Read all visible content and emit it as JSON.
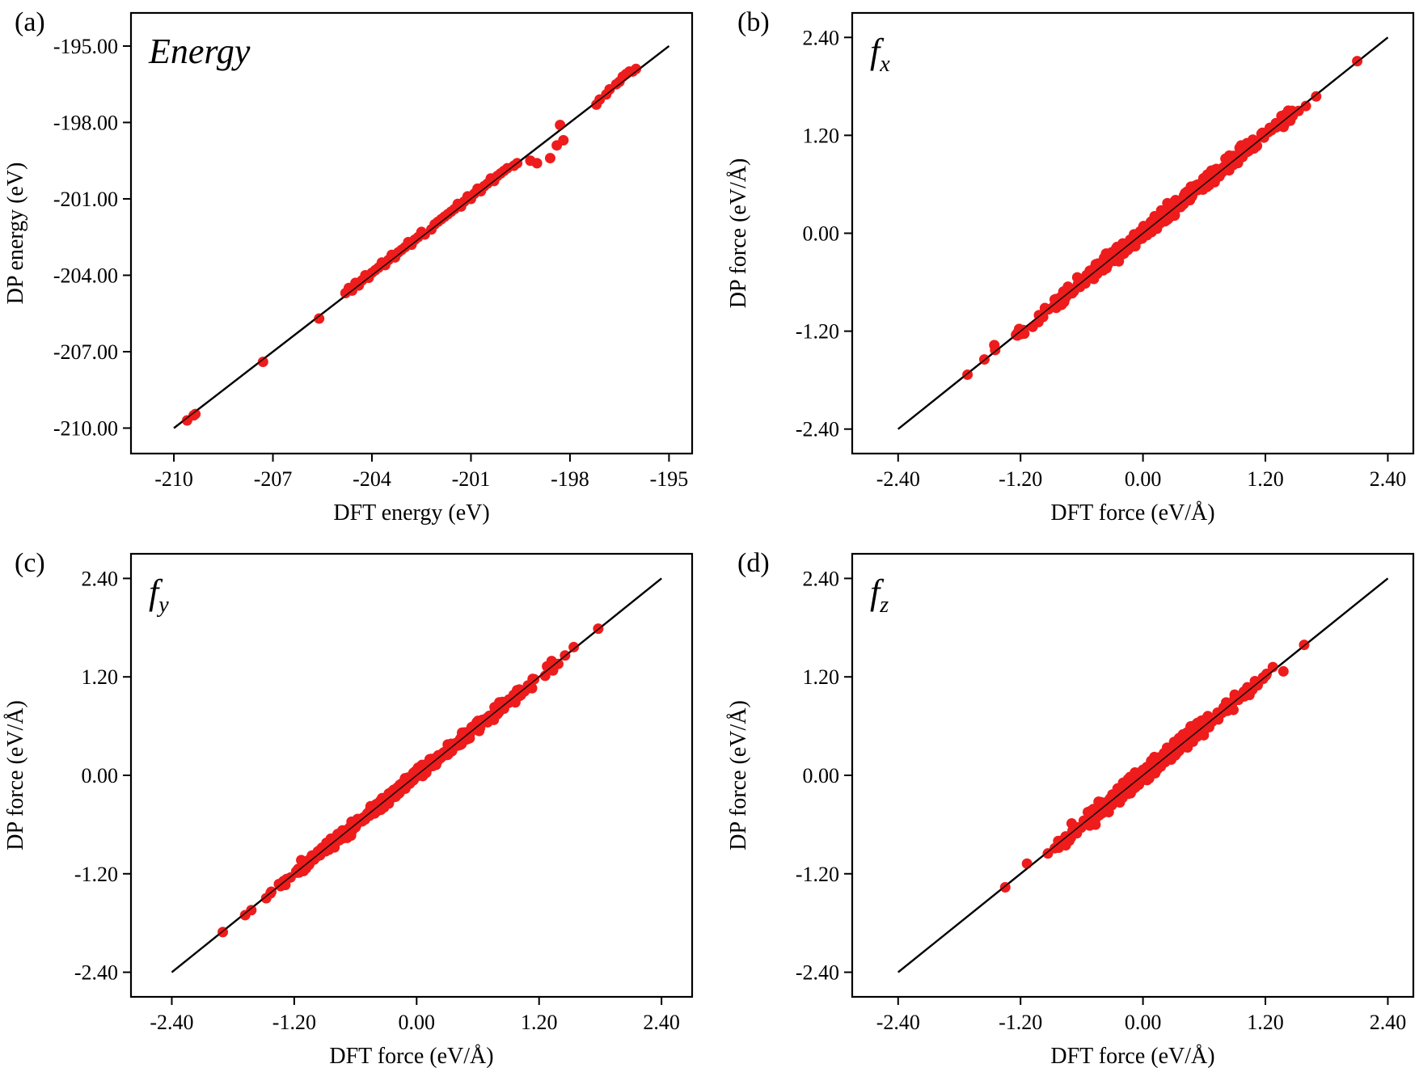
{
  "chart_data": [
    {
      "type": "scatter",
      "panel_label": "(a)",
      "title": "Energy",
      "title_sub": "",
      "xlabel": "DFT energy (eV)",
      "ylabel": "DP energy (eV)",
      "xlim": [
        -211.3,
        -194.3
      ],
      "ylim": [
        -211.0,
        -193.7
      ],
      "xticks": [
        -210,
        -207,
        -204,
        -201,
        -198,
        -195
      ],
      "xtick_labels": [
        "-210",
        "-207",
        "-204",
        "-201",
        "-198",
        "-195"
      ],
      "yticks": [
        -210,
        -207,
        -204,
        -201,
        -198,
        -195
      ],
      "ytick_labels": [
        "-210.00",
        "-207.00",
        "-204.00",
        "-201.00",
        "-198.00",
        "-195.00"
      ],
      "reference_line": {
        "from": [
          -210.0,
          -210.0
        ],
        "to": [
          -195.0,
          -195.0
        ]
      },
      "marker_color": "#ee1c1c",
      "line_color": "#000000",
      "points": [
        [
          -209.6,
          -209.7
        ],
        [
          -209.4,
          -209.5
        ],
        [
          -209.35,
          -209.45
        ],
        [
          -207.3,
          -207.4
        ],
        [
          -205.6,
          -205.7
        ],
        [
          -204.8,
          -204.7
        ],
        [
          -204.7,
          -204.5
        ],
        [
          -204.6,
          -204.6
        ],
        [
          -204.5,
          -204.3
        ],
        [
          -204.4,
          -204.4
        ],
        [
          -204.3,
          -204.2
        ],
        [
          -204.2,
          -204.0
        ],
        [
          -204.1,
          -204.1
        ],
        [
          -204.0,
          -203.9
        ],
        [
          -203.9,
          -203.8
        ],
        [
          -203.8,
          -203.7
        ],
        [
          -203.7,
          -203.5
        ],
        [
          -203.6,
          -203.6
        ],
        [
          -203.5,
          -203.4
        ],
        [
          -203.4,
          -203.2
        ],
        [
          -203.3,
          -203.3
        ],
        [
          -203.2,
          -203.1
        ],
        [
          -203.1,
          -203.0
        ],
        [
          -203.0,
          -202.9
        ],
        [
          -202.9,
          -202.7
        ],
        [
          -202.8,
          -202.8
        ],
        [
          -202.7,
          -202.6
        ],
        [
          -202.6,
          -202.5
        ],
        [
          -202.5,
          -202.3
        ],
        [
          -202.4,
          -202.4
        ],
        [
          -202.2,
          -202.2
        ],
        [
          -202.1,
          -202.0
        ],
        [
          -202.0,
          -201.9
        ],
        [
          -201.9,
          -201.8
        ],
        [
          -201.8,
          -201.7
        ],
        [
          -201.7,
          -201.6
        ],
        [
          -201.6,
          -201.5
        ],
        [
          -201.5,
          -201.4
        ],
        [
          -201.4,
          -201.2
        ],
        [
          -201.3,
          -201.3
        ],
        [
          -201.2,
          -201.1
        ],
        [
          -201.1,
          -200.9
        ],
        [
          -201.0,
          -201.0
        ],
        [
          -200.9,
          -200.8
        ],
        [
          -200.8,
          -200.6
        ],
        [
          -200.7,
          -200.7
        ],
        [
          -200.6,
          -200.5
        ],
        [
          -200.5,
          -200.4
        ],
        [
          -200.4,
          -200.2
        ],
        [
          -200.3,
          -200.3
        ],
        [
          -200.2,
          -200.1
        ],
        [
          -200.1,
          -200.0
        ],
        [
          -200.0,
          -199.9
        ],
        [
          -199.9,
          -199.8
        ],
        [
          -199.7,
          -199.7
        ],
        [
          -199.6,
          -199.6
        ],
        [
          -199.2,
          -199.5
        ],
        [
          -199.0,
          -199.6
        ],
        [
          -198.6,
          -199.4
        ],
        [
          -198.4,
          -198.9
        ],
        [
          -198.2,
          -198.7
        ],
        [
          -198.3,
          -198.1
        ],
        [
          -197.2,
          -197.3
        ],
        [
          -197.1,
          -197.1
        ],
        [
          -196.9,
          -196.9
        ],
        [
          -196.8,
          -196.7
        ],
        [
          -196.6,
          -196.5
        ],
        [
          -196.5,
          -196.4
        ],
        [
          -196.4,
          -196.2
        ],
        [
          -196.3,
          -196.1
        ],
        [
          -196.2,
          -196.0
        ],
        [
          -196.1,
          -196.0
        ],
        [
          -196.0,
          -195.9
        ]
      ]
    },
    {
      "type": "scatter",
      "panel_label": "(b)",
      "title": "f",
      "title_sub": "x",
      "xlabel": "DFT force (eV/Å)",
      "ylabel": "DP force (eV/Å)",
      "xlim": [
        -2.85,
        2.65
      ],
      "ylim": [
        -2.7,
        2.7
      ],
      "xticks": [
        -2.4,
        -1.2,
        0.0,
        1.2,
        2.4
      ],
      "xtick_labels": [
        "-2.40",
        "-1.20",
        "0.00",
        "1.20",
        "2.40"
      ],
      "yticks": [
        -2.4,
        -1.2,
        0.0,
        1.2,
        2.4
      ],
      "ytick_labels": [
        "-2.40",
        "-1.20",
        "0.00",
        "1.20",
        "2.40"
      ],
      "reference_line": {
        "from": [
          -2.4,
          -2.4
        ],
        "to": [
          2.4,
          2.4
        ]
      },
      "marker_color": "#ee1c1c",
      "line_color": "#000000",
      "x_range": [
        -1.72,
        2.1
      ],
      "point_count": 420,
      "spread": 0.045,
      "seed": 11
    },
    {
      "type": "scatter",
      "panel_label": "(c)",
      "title": "f",
      "title_sub": "y",
      "xlabel": "DFT force (eV/Å)",
      "ylabel": "DP force (eV/Å)",
      "xlim": [
        -2.8,
        2.7
      ],
      "ylim": [
        -2.7,
        2.7
      ],
      "xticks": [
        -2.4,
        -1.2,
        0.0,
        1.2,
        2.4
      ],
      "xtick_labels": [
        "-2.40",
        "-1.20",
        "0.00",
        "1.20",
        "2.40"
      ],
      "yticks": [
        -2.4,
        -1.2,
        0.0,
        1.2,
        2.4
      ],
      "ytick_labels": [
        "-2.40",
        "-1.20",
        "0.00",
        "1.20",
        "2.40"
      ],
      "reference_line": {
        "from": [
          -2.4,
          -2.4
        ],
        "to": [
          2.4,
          2.4
        ]
      },
      "marker_color": "#ee1c1c",
      "line_color": "#000000",
      "x_range": [
        -1.9,
        1.78
      ],
      "point_count": 420,
      "spread": 0.035,
      "seed": 23
    },
    {
      "type": "scatter",
      "panel_label": "(d)",
      "title": "f",
      "title_sub": "z",
      "xlabel": "DFT force (eV/Å)",
      "ylabel": "DP force (eV/Å)",
      "xlim": [
        -2.85,
        2.65
      ],
      "ylim": [
        -2.7,
        2.7
      ],
      "xticks": [
        -2.4,
        -1.2,
        0.0,
        1.2,
        2.4
      ],
      "xtick_labels": [
        "-2.40",
        "-1.20",
        "0.00",
        "1.20",
        "2.40"
      ],
      "yticks": [
        -2.4,
        -1.2,
        0.0,
        1.2,
        2.4
      ],
      "ytick_labels": [
        "-2.40",
        "-1.20",
        "0.00",
        "1.20",
        "2.40"
      ],
      "reference_line": {
        "from": [
          -2.4,
          -2.4
        ],
        "to": [
          2.4,
          2.4
        ]
      },
      "marker_color": "#ee1c1c",
      "line_color": "#000000",
      "x_range": [
        -1.35,
        1.58
      ],
      "point_count": 360,
      "spread": 0.05,
      "seed": 37
    }
  ]
}
